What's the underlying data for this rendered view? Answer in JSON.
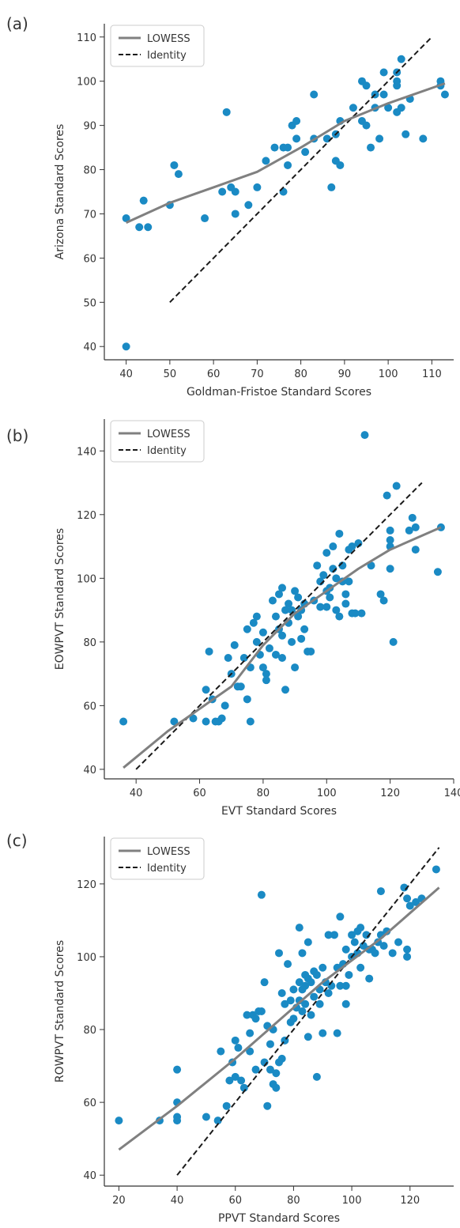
{
  "chart_data": [
    {
      "panel_label": "(a)",
      "type": "scatter",
      "xlabel": "Goldman-Fristoe Standard Scores",
      "ylabel": "Arizona Standard Scores",
      "xlim": [
        35,
        115
      ],
      "ylim": [
        37,
        113
      ],
      "xticks": [
        40,
        50,
        60,
        70,
        80,
        90,
        100,
        110
      ],
      "yticks": [
        40,
        50,
        60,
        70,
        80,
        90,
        100,
        110
      ],
      "legend": {
        "position": "top-left",
        "entries": [
          "LOWESS",
          "Identity"
        ]
      },
      "colors": {
        "points": "#1a8ac4",
        "lowess": "#808080",
        "identity": "#1a1a1a"
      },
      "points": [
        [
          40,
          69
        ],
        [
          40,
          40
        ],
        [
          43,
          67
        ],
        [
          44,
          73
        ],
        [
          45,
          67
        ],
        [
          50,
          72
        ],
        [
          51,
          81
        ],
        [
          52,
          79
        ],
        [
          58,
          69
        ],
        [
          62,
          75
        ],
        [
          63,
          93
        ],
        [
          64,
          76
        ],
        [
          65,
          75
        ],
        [
          65,
          70
        ],
        [
          68,
          72
        ],
        [
          70,
          76
        ],
        [
          72,
          82
        ],
        [
          74,
          85
        ],
        [
          76,
          85
        ],
        [
          76,
          75
        ],
        [
          77,
          85
        ],
        [
          77,
          81
        ],
        [
          78,
          90
        ],
        [
          79,
          91
        ],
        [
          79,
          87
        ],
        [
          81,
          84
        ],
        [
          83,
          97
        ],
        [
          83,
          87
        ],
        [
          86,
          87
        ],
        [
          87,
          76
        ],
        [
          88,
          82
        ],
        [
          88,
          88
        ],
        [
          89,
          81
        ],
        [
          89,
          91
        ],
        [
          92,
          94
        ],
        [
          94,
          100
        ],
        [
          94,
          91
        ],
        [
          95,
          99
        ],
        [
          95,
          90
        ],
        [
          96,
          85
        ],
        [
          97,
          94
        ],
        [
          97,
          97
        ],
        [
          98,
          87
        ],
        [
          99,
          102
        ],
        [
          99,
          97
        ],
        [
          100,
          94
        ],
        [
          102,
          102
        ],
        [
          102,
          100
        ],
        [
          102,
          99
        ],
        [
          102,
          93
        ],
        [
          103,
          94
        ],
        [
          103,
          105
        ],
        [
          104,
          88
        ],
        [
          105,
          96
        ],
        [
          108,
          87
        ],
        [
          112,
          100
        ],
        [
          112,
          99
        ],
        [
          113,
          97
        ]
      ],
      "lowess": [
        [
          40,
          68
        ],
        [
          50,
          72.5
        ],
        [
          60,
          76
        ],
        [
          70,
          79.5
        ],
        [
          80,
          85
        ],
        [
          90,
          91
        ],
        [
          100,
          95
        ],
        [
          113,
          99.5
        ]
      ],
      "identity": [
        [
          50,
          50
        ],
        [
          110,
          110
        ]
      ]
    },
    {
      "panel_label": "(b)",
      "type": "scatter",
      "xlabel": "EVT Standard Scores",
      "ylabel": "EOWPVT Standard Scores",
      "xlim": [
        30,
        140
      ],
      "ylim": [
        37,
        150
      ],
      "xticks": [
        40,
        60,
        80,
        100,
        120,
        140
      ],
      "yticks": [
        40,
        60,
        80,
        100,
        120,
        140
      ],
      "legend": {
        "position": "top-left",
        "entries": [
          "LOWESS",
          "Identity"
        ]
      },
      "colors": {
        "points": "#1a8ac4",
        "lowess": "#808080",
        "identity": "#1a1a1a"
      },
      "points": [
        [
          36,
          55
        ],
        [
          52,
          55
        ],
        [
          58,
          56
        ],
        [
          62,
          65
        ],
        [
          62,
          55
        ],
        [
          63,
          77
        ],
        [
          64,
          62
        ],
        [
          65,
          55
        ],
        [
          66,
          55
        ],
        [
          67,
          56
        ],
        [
          68,
          60
        ],
        [
          69,
          75
        ],
        [
          70,
          70
        ],
        [
          71,
          79
        ],
        [
          72,
          66
        ],
        [
          73,
          66
        ],
        [
          74,
          75
        ],
        [
          75,
          62
        ],
        [
          76,
          55
        ],
        [
          75,
          84
        ],
        [
          76,
          72
        ],
        [
          77,
          86
        ],
        [
          78,
          80
        ],
        [
          78,
          88
        ],
        [
          79,
          76
        ],
        [
          80,
          83
        ],
        [
          80,
          72
        ],
        [
          81,
          68
        ],
        [
          81,
          70
        ],
        [
          82,
          78
        ],
        [
          83,
          93
        ],
        [
          84,
          76
        ],
        [
          84,
          88
        ],
        [
          85,
          84
        ],
        [
          85,
          95
        ],
        [
          86,
          97
        ],
        [
          86,
          82
        ],
        [
          86,
          75
        ],
        [
          87,
          65
        ],
        [
          87,
          90
        ],
        [
          88,
          92
        ],
        [
          88,
          86
        ],
        [
          89,
          80
        ],
        [
          89,
          90
        ],
        [
          90,
          96
        ],
        [
          90,
          72
        ],
        [
          91,
          88
        ],
        [
          91,
          94
        ],
        [
          92,
          81
        ],
        [
          92,
          90
        ],
        [
          93,
          84
        ],
        [
          93,
          92
        ],
        [
          94,
          77
        ],
        [
          95,
          77
        ],
        [
          96,
          93
        ],
        [
          97,
          104
        ],
        [
          98,
          99
        ],
        [
          98,
          91
        ],
        [
          99,
          101
        ],
        [
          100,
          96
        ],
        [
          100,
          108
        ],
        [
          100,
          91
        ],
        [
          101,
          97
        ],
        [
          101,
          94
        ],
        [
          102,
          110
        ],
        [
          102,
          103
        ],
        [
          103,
          100
        ],
        [
          103,
          90
        ],
        [
          104,
          114
        ],
        [
          104,
          88
        ],
        [
          105,
          104
        ],
        [
          105,
          99
        ],
        [
          106,
          95
        ],
        [
          106,
          92
        ],
        [
          107,
          99
        ],
        [
          107,
          109
        ],
        [
          108,
          110
        ],
        [
          108,
          89
        ],
        [
          109,
          89
        ],
        [
          110,
          111
        ],
        [
          111,
          89
        ],
        [
          112,
          145
        ],
        [
          114,
          104
        ],
        [
          117,
          95
        ],
        [
          118,
          93
        ],
        [
          119,
          126
        ],
        [
          120,
          103
        ],
        [
          120,
          110
        ],
        [
          120,
          112
        ],
        [
          120,
          115
        ],
        [
          121,
          80
        ],
        [
          122,
          129
        ],
        [
          126,
          115
        ],
        [
          127,
          119
        ],
        [
          128,
          109
        ],
        [
          128,
          116
        ],
        [
          135,
          102
        ],
        [
          136,
          116
        ]
      ],
      "lowess": [
        [
          36,
          40.5
        ],
        [
          50,
          52
        ],
        [
          60,
          59
        ],
        [
          70,
          66
        ],
        [
          80,
          79
        ],
        [
          90,
          89
        ],
        [
          100,
          96
        ],
        [
          110,
          103
        ],
        [
          120,
          109
        ],
        [
          136,
          116
        ]
      ],
      "identity": [
        [
          40,
          40
        ],
        [
          130,
          130
        ]
      ]
    },
    {
      "panel_label": "(c)",
      "type": "scatter",
      "xlabel": "PPVT Standard Scores",
      "ylabel": "ROWPVT Standard Scores",
      "xlim": [
        15,
        135
      ],
      "ylim": [
        37,
        133
      ],
      "xticks": [
        20,
        40,
        60,
        80,
        100,
        120
      ],
      "yticks": [
        40,
        60,
        80,
        100,
        120
      ],
      "legend": {
        "position": "top-left",
        "entries": [
          "LOWESS",
          "Identity"
        ]
      },
      "colors": {
        "points": "#1a8ac4",
        "lowess": "#808080",
        "identity": "#1a1a1a"
      },
      "points": [
        [
          20,
          55
        ],
        [
          34,
          55
        ],
        [
          40,
          69
        ],
        [
          40,
          60
        ],
        [
          40,
          56
        ],
        [
          40,
          55
        ],
        [
          50,
          56
        ],
        [
          54,
          55
        ],
        [
          55,
          74
        ],
        [
          57,
          59
        ],
        [
          58,
          66
        ],
        [
          59,
          71
        ],
        [
          60,
          77
        ],
        [
          60,
          67
        ],
        [
          61,
          75
        ],
        [
          62,
          66
        ],
        [
          63,
          64
        ],
        [
          64,
          84
        ],
        [
          65,
          74
        ],
        [
          65,
          79
        ],
        [
          66,
          84
        ],
        [
          67,
          69
        ],
        [
          67,
          83
        ],
        [
          68,
          85
        ],
        [
          69,
          85
        ],
        [
          69,
          117
        ],
        [
          70,
          71
        ],
        [
          70,
          93
        ],
        [
          71,
          81
        ],
        [
          71,
          59
        ],
        [
          72,
          69
        ],
        [
          72,
          76
        ],
        [
          73,
          80
        ],
        [
          73,
          65
        ],
        [
          74,
          68
        ],
        [
          74,
          64
        ],
        [
          75,
          101
        ],
        [
          75,
          71
        ],
        [
          76,
          72
        ],
        [
          76,
          90
        ],
        [
          77,
          87
        ],
        [
          77,
          77
        ],
        [
          78,
          98
        ],
        [
          79,
          82
        ],
        [
          79,
          88
        ],
        [
          80,
          91
        ],
        [
          80,
          83
        ],
        [
          81,
          86
        ],
        [
          82,
          108
        ],
        [
          82,
          93
        ],
        [
          82,
          88
        ],
        [
          83,
          91
        ],
        [
          83,
          85
        ],
        [
          83,
          101
        ],
        [
          84,
          95
        ],
        [
          84,
          92
        ],
        [
          84,
          87
        ],
        [
          85,
          94
        ],
        [
          85,
          78
        ],
        [
          85,
          104
        ],
        [
          86,
          93
        ],
        [
          86,
          84
        ],
        [
          87,
          96
        ],
        [
          87,
          89
        ],
        [
          88,
          67
        ],
        [
          88,
          95
        ],
        [
          89,
          91
        ],
        [
          89,
          87
        ],
        [
          90,
          97
        ],
        [
          90,
          79
        ],
        [
          91,
          93
        ],
        [
          92,
          106
        ],
        [
          92,
          90
        ],
        [
          93,
          92
        ],
        [
          94,
          106
        ],
        [
          95,
          79
        ],
        [
          95,
          97
        ],
        [
          96,
          111
        ],
        [
          96,
          92
        ],
        [
          97,
          98
        ],
        [
          98,
          102
        ],
        [
          98,
          92
        ],
        [
          98,
          87
        ],
        [
          99,
          95
        ],
        [
          100,
          100
        ],
        [
          100,
          106
        ],
        [
          101,
          104
        ],
        [
          102,
          107
        ],
        [
          102,
          101
        ],
        [
          103,
          108
        ],
        [
          103,
          97
        ],
        [
          104,
          103
        ],
        [
          105,
          106
        ],
        [
          106,
          94
        ],
        [
          106,
          102
        ],
        [
          107,
          102
        ],
        [
          108,
          101
        ],
        [
          109,
          104
        ],
        [
          110,
          118
        ],
        [
          110,
          106
        ],
        [
          111,
          103
        ],
        [
          112,
          107
        ],
        [
          114,
          101
        ],
        [
          116,
          104
        ],
        [
          118,
          119
        ],
        [
          119,
          116
        ],
        [
          119,
          100
        ],
        [
          119,
          102
        ],
        [
          120,
          114
        ],
        [
          122,
          115
        ],
        [
          124,
          116
        ],
        [
          129,
          124
        ]
      ],
      "lowess": [
        [
          20,
          47
        ],
        [
          40,
          59
        ],
        [
          60,
          72
        ],
        [
          80,
          86
        ],
        [
          90,
          93
        ],
        [
          100,
          99
        ],
        [
          110,
          105
        ],
        [
          120,
          112
        ],
        [
          130,
          119
        ]
      ],
      "identity": [
        [
          40,
          40
        ],
        [
          130,
          130
        ]
      ]
    }
  ]
}
